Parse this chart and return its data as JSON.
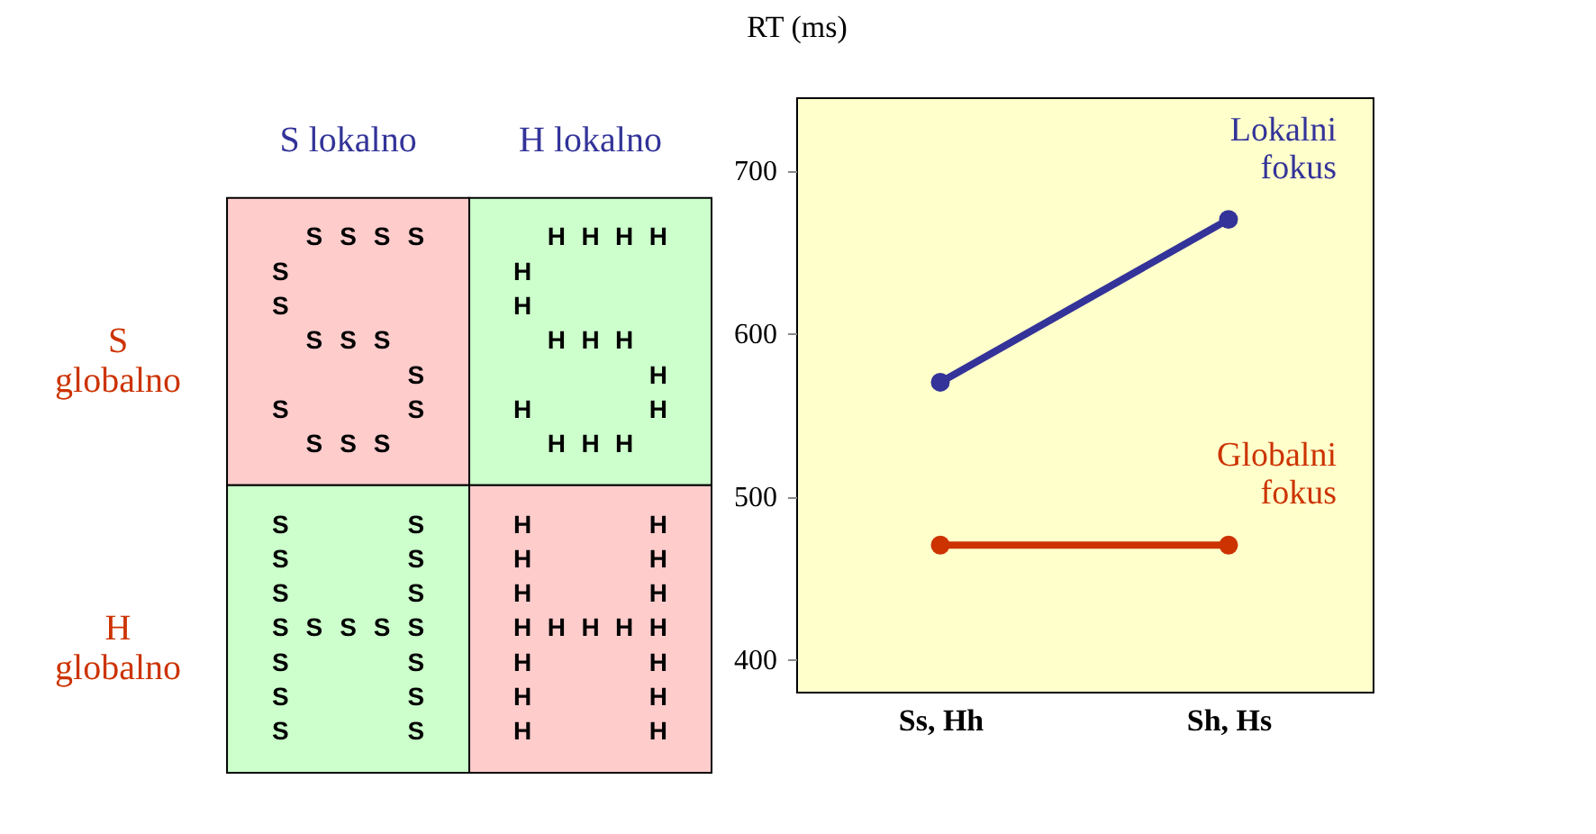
{
  "chart_data": [
    {
      "type": "other",
      "categories": [
        "S lokalno",
        "H lokalno"
      ],
      "y_categories": [
        "S globalno",
        "H globalno"
      ],
      "cell_labels": [
        [
          "S",
          "H"
        ],
        [
          "S",
          "H"
        ]
      ],
      "colors": [
        "#ffcccc",
        "#ccffcc",
        "#ccffcc",
        "#ffcccc"
      ]
    },
    {
      "type": "line",
      "ylabel": "RT (ms)",
      "categories": [
        "Ss, Hh",
        "Sh, Hs"
      ],
      "ylim": [
        380,
        745
      ],
      "yticks": [
        400,
        500,
        600,
        700
      ],
      "marker": "circle",
      "line_style": "solid",
      "series": [
        {
          "name": "Lokalni fokus",
          "color": "#333399",
          "values": [
            570,
            670
          ]
        },
        {
          "name": "Globalni fokus",
          "color": "#cc3300",
          "values": [
            470,
            470
          ]
        }
      ]
    }
  ]
}
